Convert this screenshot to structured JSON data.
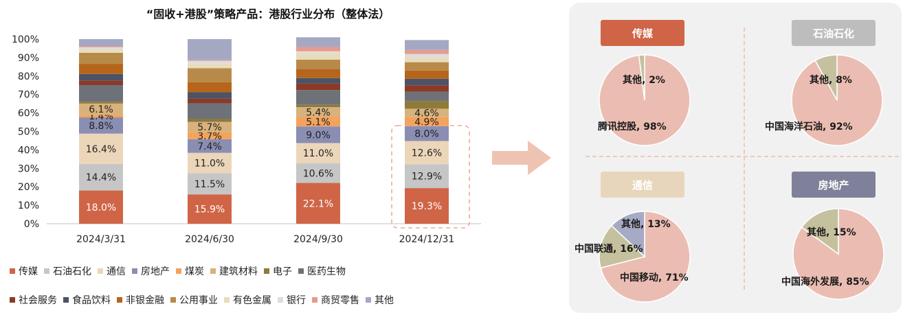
{
  "chart_data": [
    {
      "type": "bar",
      "stacked": true,
      "title": "“固收+港股”策略产品：港股行业分布（整体法）",
      "categories": [
        "2024/3/31",
        "2024/6/30",
        "2024/9/30",
        "2024/12/31"
      ],
      "yticks": [
        "0%",
        "10%",
        "20%",
        "30%",
        "40%",
        "50%",
        "60%",
        "70%",
        "80%",
        "90%",
        "100%"
      ],
      "ylim": [
        0,
        100
      ],
      "series": [
        {
          "name": "传媒",
          "color": "#cf6546",
          "values": [
            18.0,
            15.9,
            22.1,
            19.3
          ],
          "labels": [
            "18.0%",
            "15.9%",
            "22.1%",
            "19.3%"
          ]
        },
        {
          "name": "石油石化",
          "color": "#c6c6c6",
          "values": [
            14.4,
            11.5,
            10.6,
            12.9
          ],
          "labels": [
            "14.4%",
            "11.5%",
            "10.6%",
            "12.9%"
          ]
        },
        {
          "name": "通信",
          "color": "#ecd6ba",
          "values": [
            16.4,
            11.0,
            11.0,
            12.6
          ],
          "labels": [
            "16.4%",
            "11.0%",
            "11.0%",
            "12.6%"
          ]
        },
        {
          "name": "房地产",
          "color": "#8b8eb3",
          "values": [
            8.8,
            7.4,
            9.0,
            8.0
          ],
          "labels": [
            "8.8%",
            "7.4%",
            "9.0%",
            "8.0%"
          ]
        },
        {
          "name": "煤炭",
          "color": "#f3a35c",
          "values": [
            1.4,
            3.7,
            5.1,
            4.9
          ],
          "labels": [
            "1.4%",
            "3.7%",
            "5.1%",
            "4.9%"
          ]
        },
        {
          "name": "建筑材料",
          "color": "#d8b27c",
          "values": [
            6.1,
            5.7,
            5.4,
            4.6
          ],
          "labels": [
            "6.1%",
            "5.7%",
            "5.4%",
            "4.6%"
          ]
        },
        {
          "name": "电子",
          "color": "#8e7a3a",
          "values": [
            1.0,
            1.5,
            1.2,
            4.2
          ],
          "labels": [
            "",
            "",
            "",
            ""
          ]
        },
        {
          "name": "医药生物",
          "color": "#6e7278",
          "values": [
            9.0,
            8.5,
            8.0,
            5.0
          ],
          "labels": [
            "",
            "",
            "",
            ""
          ]
        },
        {
          "name": "社会服务",
          "color": "#8a3a26",
          "values": [
            2.5,
            2.5,
            3.5,
            3.5
          ],
          "labels": [
            "",
            "",
            "",
            ""
          ]
        },
        {
          "name": "食品饮料",
          "color": "#4c5366",
          "values": [
            3.5,
            3.5,
            3.0,
            3.5
          ],
          "labels": [
            "",
            "",
            "",
            ""
          ]
        },
        {
          "name": "非银金融",
          "color": "#b5661c",
          "values": [
            5.5,
            5.5,
            5.0,
            4.5
          ],
          "labels": [
            "",
            "",
            "",
            ""
          ]
        },
        {
          "name": "公用事业",
          "color": "#b88a4a",
          "values": [
            6.0,
            7.5,
            5.0,
            4.5
          ],
          "labels": [
            "",
            "",
            "",
            ""
          ]
        },
        {
          "name": "有色金属",
          "color": "#e8dcbc",
          "values": [
            2.0,
            2.5,
            3.5,
            2.5
          ],
          "labels": [
            "",
            "",
            "",
            ""
          ]
        },
        {
          "name": "银行",
          "color": "#dddddd",
          "values": [
            1.0,
            1.5,
            1.0,
            2.0
          ],
          "labels": [
            "",
            "",
            "",
            ""
          ]
        },
        {
          "name": "商贸零售",
          "color": "#e89a8c",
          "values": [
            0.5,
            0.5,
            2.3,
            2.1
          ],
          "labels": [
            "",
            "",
            "",
            ""
          ]
        },
        {
          "name": "其他",
          "color": "#a5a8c2",
          "values": [
            3.9,
            11.3,
            5.3,
            5.4
          ],
          "labels": [
            "",
            "",
            "",
            ""
          ]
        }
      ]
    },
    {
      "type": "pie",
      "title": "传媒",
      "title_color": "#cf6546",
      "slices": [
        {
          "label": "腾讯控股, 98%",
          "value": 98,
          "color": "#ebbdb2"
        },
        {
          "label": "其他, 2%",
          "value": 2,
          "color": "#c5c19e"
        }
      ]
    },
    {
      "type": "pie",
      "title": "石油石化",
      "title_color": "#bdbdbd",
      "slices": [
        {
          "label": "中国海洋石油, 92%",
          "value": 92,
          "color": "#ebbdb2"
        },
        {
          "label": "其他, 8%",
          "value": 8,
          "color": "#c5c19e"
        }
      ]
    },
    {
      "type": "pie",
      "title": "通信",
      "title_color": "#e8d6bc",
      "slices": [
        {
          "label": "中国移动, 71%",
          "value": 71,
          "color": "#ebbdb2"
        },
        {
          "label": "中国联通, 16%",
          "value": 16,
          "color": "#c5c19e"
        },
        {
          "label": "其他, 13%",
          "value": 13,
          "color": "#a7aac4"
        }
      ]
    },
    {
      "type": "pie",
      "title": "房地产",
      "title_color": "#7e8199",
      "slices": [
        {
          "label": "中国海外发展, 85%",
          "value": 85,
          "color": "#ebbdb2"
        },
        {
          "label": "其他, 15%",
          "value": 15,
          "color": "#c5c19e"
        }
      ]
    }
  ],
  "colors": {
    "highlight_dash": "#f0a898",
    "arrow": "#efc3b2",
    "panel_bg": "#f1f1f1"
  }
}
